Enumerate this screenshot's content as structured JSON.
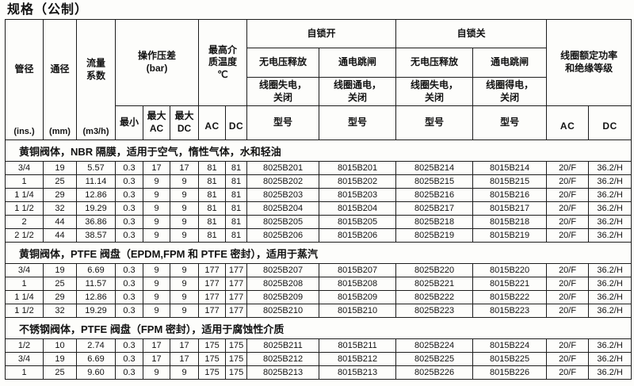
{
  "title": "规格（公制）",
  "table": {
    "header": {
      "pipe": {
        "label": "管径",
        "unit": "(ins.)"
      },
      "bore": {
        "label": "通径",
        "unit": "(mm)"
      },
      "flow": {
        "label": "流量\n系数",
        "unit": "(m3/h)"
      },
      "pressure": {
        "label": "操作压差\n(bar)",
        "min": "最小",
        "max_ac": "最大\nAC",
        "max_dc": "最大\nDC"
      },
      "temp": {
        "label": "最高介\n质温度\n℃",
        "ac": "AC",
        "dc": "DC"
      },
      "latch_open": {
        "label": "自锁开",
        "novolt": {
          "title": "无电压释放",
          "sub": "线圈失电，\n关闭",
          "model": "型号"
        },
        "energize": {
          "title": "通电跳闸",
          "sub": "线圈通电，\n关闭",
          "model": "型号"
        }
      },
      "latch_close": {
        "label": "自锁关",
        "novolt": {
          "title": "无电压释放",
          "sub": "线圈失电，\n关闭",
          "model": "型号"
        },
        "energize": {
          "title": "通电跳闸",
          "sub": "线圈得电，\n关闭",
          "model": "型号"
        }
      },
      "coil": {
        "label": "线圈额定功率\n和绝缘等级",
        "ac": "AC",
        "dc": "DC"
      }
    },
    "sections": [
      {
        "label": "黄铜阀体，NBR 隔膜，适用于空气，惰性气体，水和轻油",
        "rows": [
          [
            "3/4",
            "19",
            "5.57",
            "0.3",
            "17",
            "17",
            "81",
            "81",
            "8025B201",
            "8015B201",
            "8025B214",
            "8015B214",
            "20/F",
            "36.2/H"
          ],
          [
            "1",
            "25",
            "11.14",
            "0.3",
            "9",
            "9",
            "81",
            "81",
            "8025B202",
            "8015B202",
            "8025B215",
            "8015B215",
            "20/F",
            "36.2/H"
          ],
          [
            "1 1/4",
            "29",
            "12.86",
            "0.3",
            "9",
            "9",
            "81",
            "81",
            "8025B203",
            "8015B203",
            "8025B216",
            "8015B216",
            "20/F",
            "36.2/H"
          ],
          [
            "1 1/2",
            "32",
            "19.29",
            "0.3",
            "9",
            "9",
            "81",
            "81",
            "8025B204",
            "8015B204",
            "8025B217",
            "8015B217",
            "20/F",
            "36.2/H"
          ],
          [
            "2",
            "44",
            "36.86",
            "0.3",
            "9",
            "9",
            "81",
            "81",
            "8025B205",
            "8015B205",
            "8025B218",
            "8015B218",
            "20/F",
            "36.2/H"
          ],
          [
            "2 1/2",
            "44",
            "38.57",
            "0.3",
            "9",
            "9",
            "81",
            "81",
            "8025B206",
            "8015B206",
            "8025B219",
            "8015B219",
            "20/F",
            "36.2/H"
          ]
        ]
      },
      {
        "label": "黄铜阀体，PTFE 阀盘（EPDM,FPM 和 PTFE 密封），适用于蒸汽",
        "rows": [
          [
            "3/4",
            "19",
            "6.69",
            "0.3",
            "9",
            "9",
            "177",
            "177",
            "8025B207",
            "8015B207",
            "8025B220",
            "8015B220",
            "20/F",
            "36.2/H"
          ],
          [
            "1",
            "25",
            "11.57",
            "0.3",
            "9",
            "9",
            "177",
            "177",
            "8025B208",
            "8015B208",
            "8025B221",
            "8015B221",
            "20/F",
            "36.2/H"
          ],
          [
            "1 1/4",
            "29",
            "12.86",
            "0.3",
            "9",
            "9",
            "177",
            "177",
            "8025B209",
            "8015B209",
            "8025B222",
            "8015B222",
            "20/F",
            "36.2/H"
          ],
          [
            "1 1/2",
            "32",
            "19.29",
            "0.3",
            "9",
            "9",
            "177",
            "177",
            "8025B210",
            "8015B210",
            "8025B223",
            "8015B223",
            "20/F",
            "36.2/H"
          ]
        ]
      },
      {
        "label": "不锈钢阀体，PTFE 阀盘（FPM 密封），适用于腐蚀性介质",
        "rows": [
          [
            "1/2",
            "10",
            "2.74",
            "0.3",
            "17",
            "17",
            "175",
            "175",
            "8025B211",
            "8015B211",
            "8025B224",
            "8015B224",
            "20/F",
            "36.2/H"
          ],
          [
            "3/4",
            "19",
            "6.69",
            "0.3",
            "17",
            "17",
            "175",
            "175",
            "8025B212",
            "8015B212",
            "8025B225",
            "8015B225",
            "20/F",
            "36.2/H"
          ],
          [
            "1",
            "25",
            "9.60",
            "0.3",
            "9",
            "9",
            "175",
            "175",
            "8025B213",
            "8015B213",
            "8025B226",
            "8015B226",
            "20/F",
            "36.2/H"
          ]
        ]
      }
    ]
  }
}
